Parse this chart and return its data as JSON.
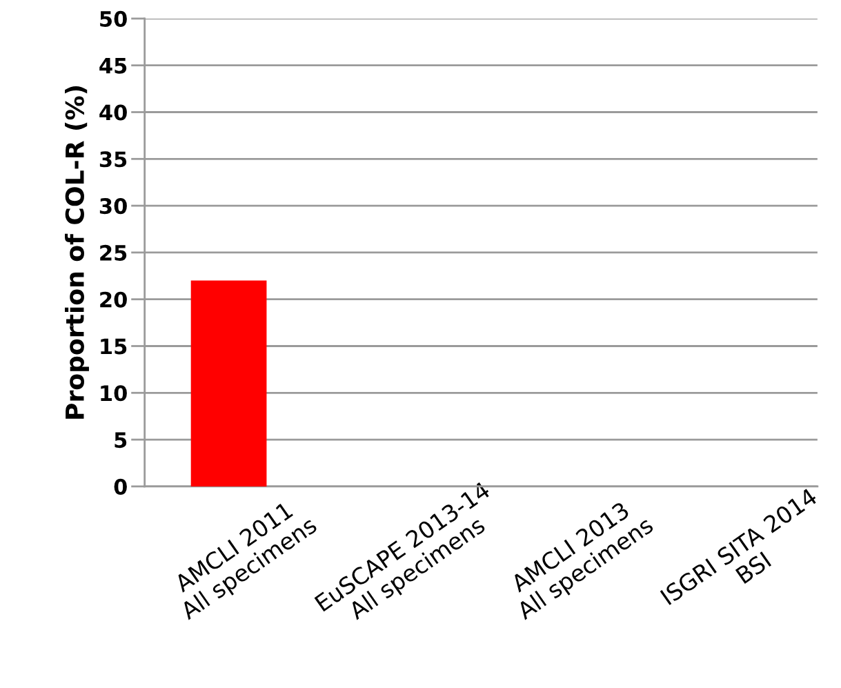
{
  "chart_data": {
    "type": "bar",
    "ylabel": "Proportion of COL-R (%)",
    "categories": [
      "AMCLI 2011\nAll specimens",
      "EuSCAPE 2013-14\nAll specimens",
      "AMCLI 2013\nAll specimens",
      "ISGRI SITA 2014\nBSI"
    ],
    "values": [
      22,
      null,
      null,
      null
    ],
    "color": "#ff0000",
    "ylim": [
      0,
      50
    ],
    "yticks": [
      0,
      5,
      10,
      15,
      20,
      25,
      30,
      35,
      40,
      45,
      50
    ],
    "grid": "y"
  }
}
